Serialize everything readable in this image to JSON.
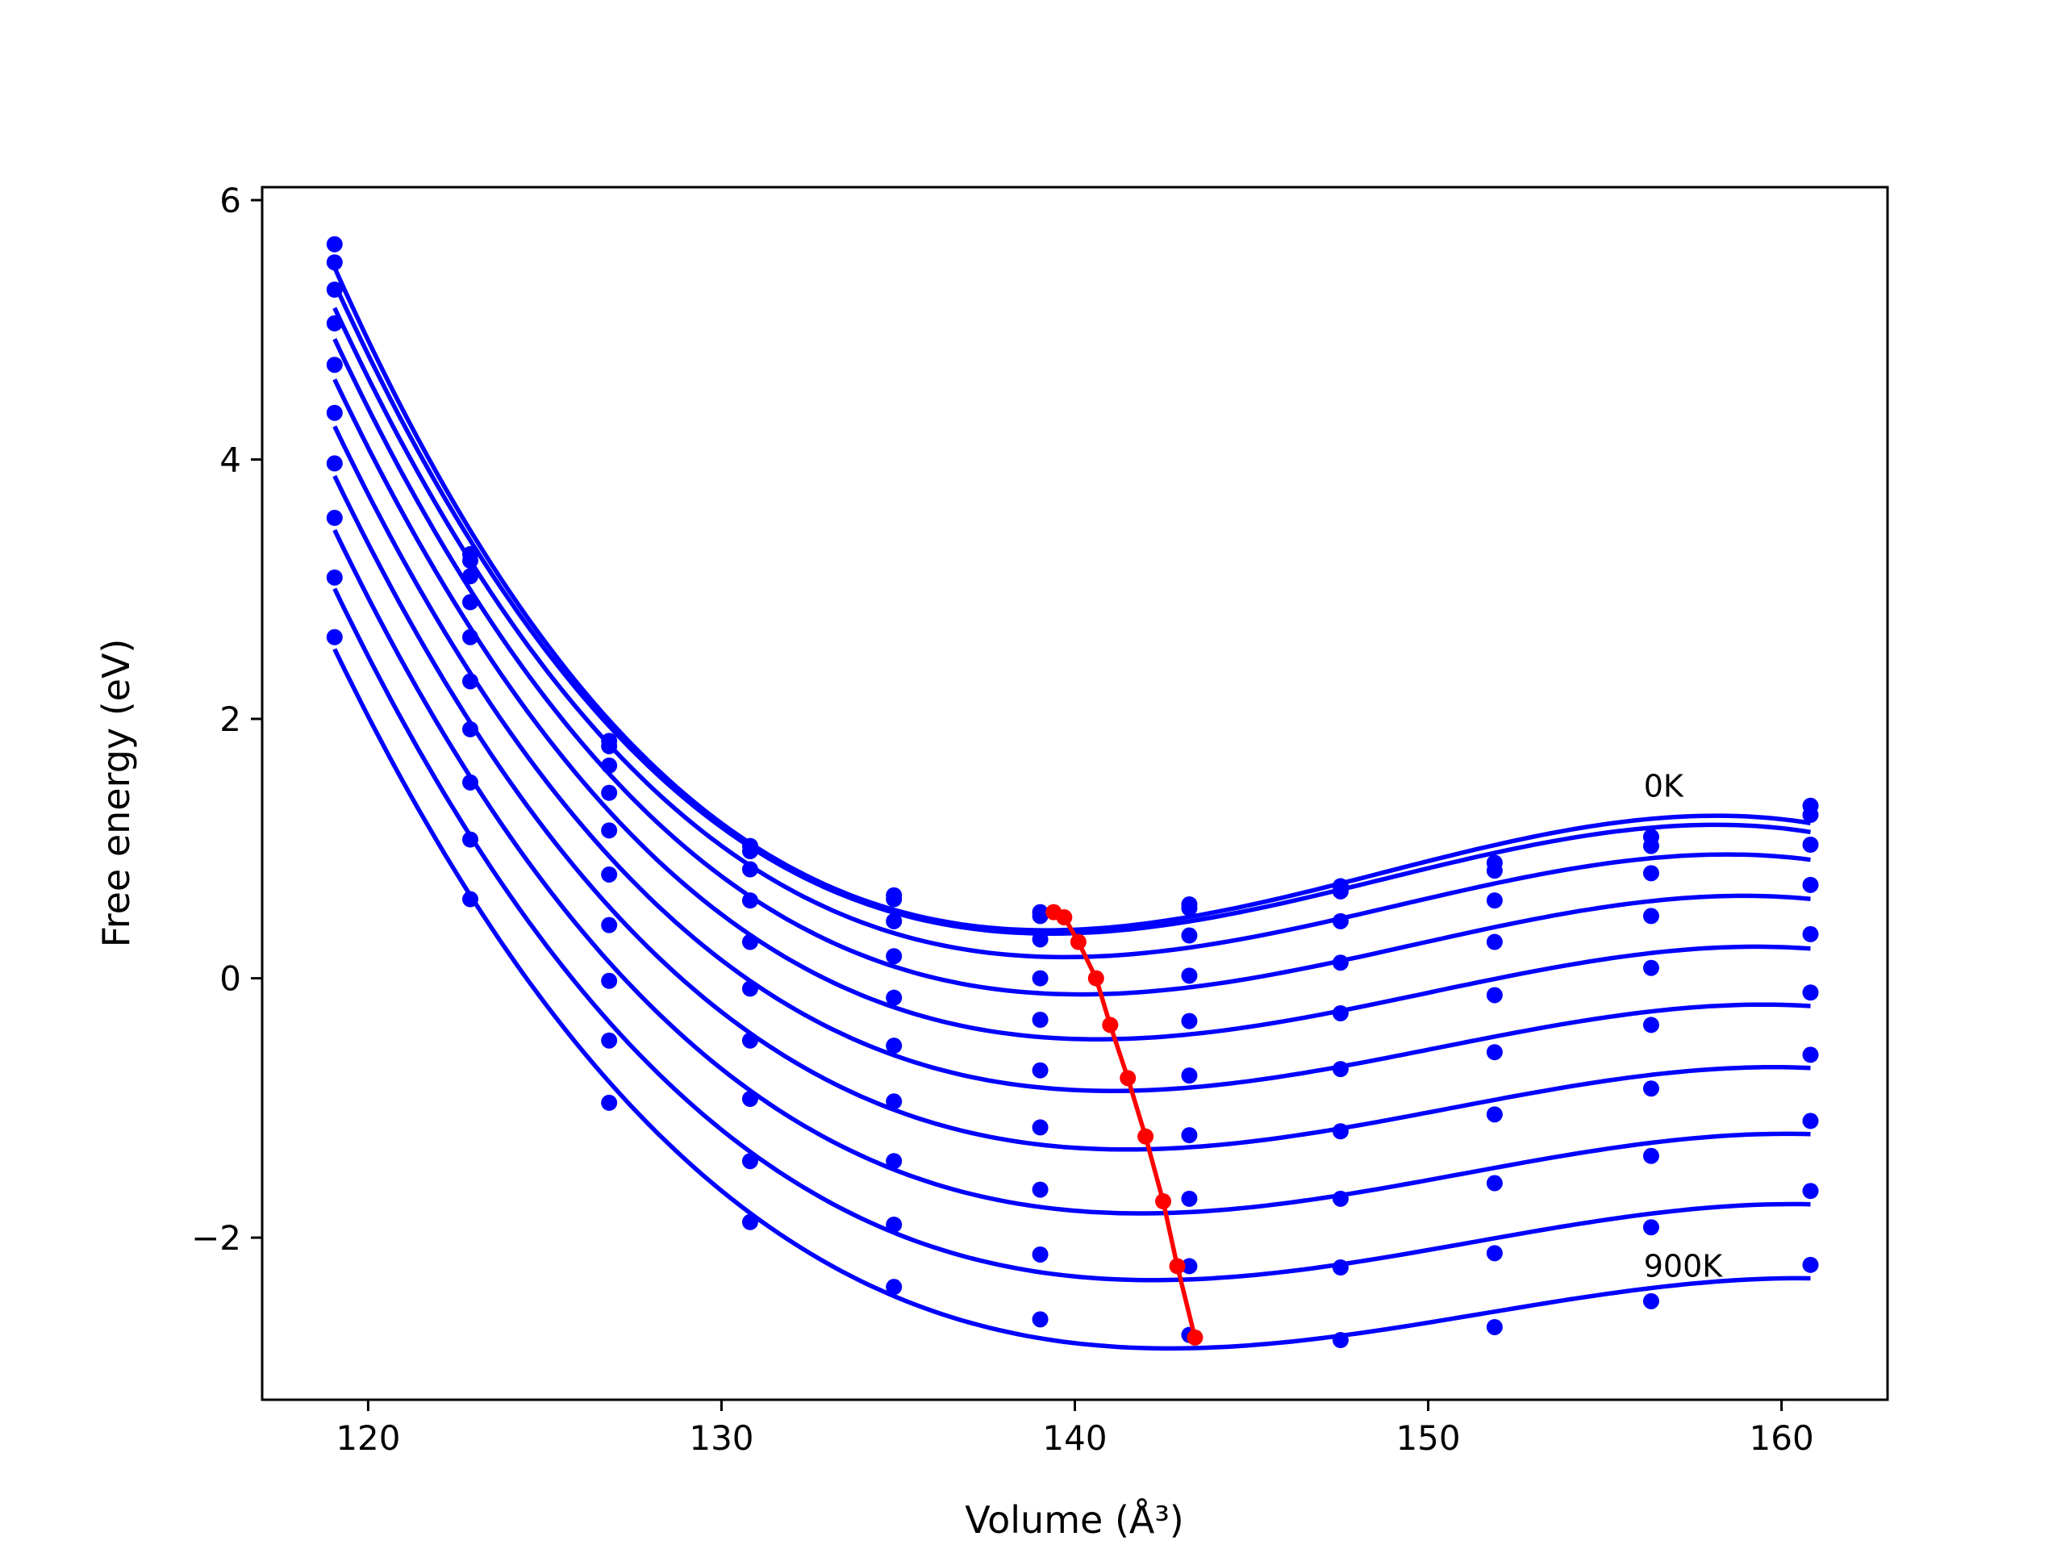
{
  "chart_data": {
    "type": "line",
    "xlabel": "Volume (Å³)",
    "ylabel": "Free energy (eV)",
    "xlim": [
      117,
      163
    ],
    "ylim": [
      -3.25,
      6.1
    ],
    "xticks": [
      {
        "value": 120,
        "label": "120"
      },
      {
        "value": 130,
        "label": "130"
      },
      {
        "value": 140,
        "label": "140"
      },
      {
        "value": 150,
        "label": "150"
      },
      {
        "value": 160,
        "label": "160"
      }
    ],
    "yticks": [
      {
        "value": -2,
        "label": "−2"
      },
      {
        "value": 0,
        "label": "0"
      },
      {
        "value": 2,
        "label": "2"
      },
      {
        "value": 4,
        "label": "4"
      },
      {
        "value": 6,
        "label": "6"
      }
    ],
    "grid": false,
    "legend": "none",
    "annotations": [
      {
        "text": "0K",
        "x": 156.1,
        "y": 1.4
      },
      {
        "text": "900K",
        "x": 156.1,
        "y": -2.3
      }
    ],
    "colors": {
      "fit": "#0000ff",
      "points": "#0000ff",
      "minimum": "#ff0000"
    },
    "x": [
      119.05,
      122.89,
      126.82,
      130.81,
      134.88,
      139.02,
      143.24,
      147.52,
      151.88,
      156.31,
      160.82
    ],
    "series": [
      {
        "values": [
          5.66,
          3.27,
          1.83,
          1.02,
          0.64,
          0.51,
          0.57,
          0.71,
          0.89,
          1.09,
          1.33
        ]
      },
      {
        "values": [
          5.52,
          3.22,
          1.79,
          0.98,
          0.61,
          0.48,
          0.54,
          0.67,
          0.83,
          1.02,
          1.26
        ]
      },
      {
        "values": [
          5.31,
          3.1,
          1.64,
          0.84,
          0.44,
          0.3,
          0.33,
          0.44,
          0.6,
          0.81,
          1.03
        ]
      },
      {
        "values": [
          5.05,
          2.9,
          1.43,
          0.6,
          0.17,
          0.0,
          0.02,
          0.12,
          0.28,
          0.48,
          0.72
        ]
      },
      {
        "values": [
          4.73,
          2.63,
          1.14,
          0.28,
          -0.15,
          -0.32,
          -0.33,
          -0.27,
          -0.13,
          0.08,
          0.34
        ]
      },
      {
        "values": [
          4.36,
          2.29,
          0.8,
          -0.08,
          -0.52,
          -0.71,
          -0.75,
          -0.7,
          -0.57,
          -0.36,
          -0.11
        ]
      },
      {
        "values": [
          3.97,
          1.92,
          0.41,
          -0.48,
          -0.95,
          -1.15,
          -1.21,
          -1.18,
          -1.05,
          -0.85,
          -0.59
        ]
      },
      {
        "values": [
          3.55,
          1.51,
          -0.02,
          -0.93,
          -1.41,
          -1.63,
          -1.7,
          -1.7,
          -1.58,
          -1.37,
          -1.1
        ]
      },
      {
        "values": [
          3.09,
          1.07,
          -0.48,
          -1.41,
          -1.9,
          -2.13,
          -2.22,
          -2.23,
          -2.12,
          -1.92,
          -1.64
        ]
      },
      {
        "values": [
          2.63,
          0.61,
          -0.96,
          -1.88,
          -2.38,
          -2.63,
          -2.75,
          -2.79,
          -2.69,
          -2.49,
          -2.21
        ]
      }
    ],
    "minimum_path": {
      "x": [
        139.4,
        139.7,
        140.1,
        140.6,
        141.0,
        141.5,
        142.0,
        142.5,
        142.9,
        143.4
      ],
      "y": [
        0.51,
        0.47,
        0.28,
        0.0,
        -0.36,
        -0.77,
        -1.22,
        -1.72,
        -2.22,
        -2.77
      ]
    }
  }
}
